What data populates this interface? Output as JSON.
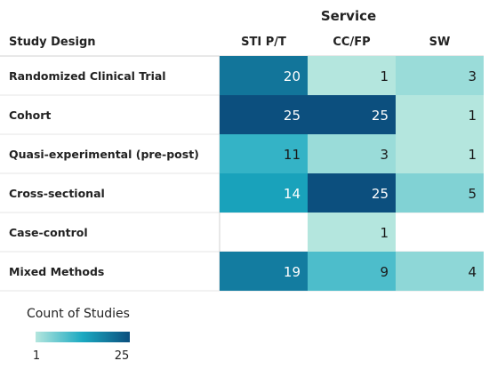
{
  "chart_data": {
    "type": "heatmap",
    "column_group_title": "Service",
    "row_header": "Study Design",
    "columns": [
      "STI P/T",
      "CC/FP",
      "SW"
    ],
    "rows": [
      "Randomized Clinical Trial",
      "Cohort",
      "Quasi-experimental (pre-post)",
      "Cross-sectional",
      "Case-control",
      "Mixed Methods"
    ],
    "values": [
      [
        20,
        1,
        3
      ],
      [
        25,
        25,
        1
      ],
      [
        11,
        3,
        1
      ],
      [
        14,
        25,
        5
      ],
      [
        null,
        1,
        null
      ],
      [
        19,
        9,
        4
      ]
    ],
    "legend": {
      "title": "Count of Studies",
      "min_label": "1",
      "max_label": "25",
      "min": 1,
      "max": 25,
      "colors": [
        "#b4e6de",
        "#1aa9c1",
        "#0c4f7e"
      ]
    }
  }
}
